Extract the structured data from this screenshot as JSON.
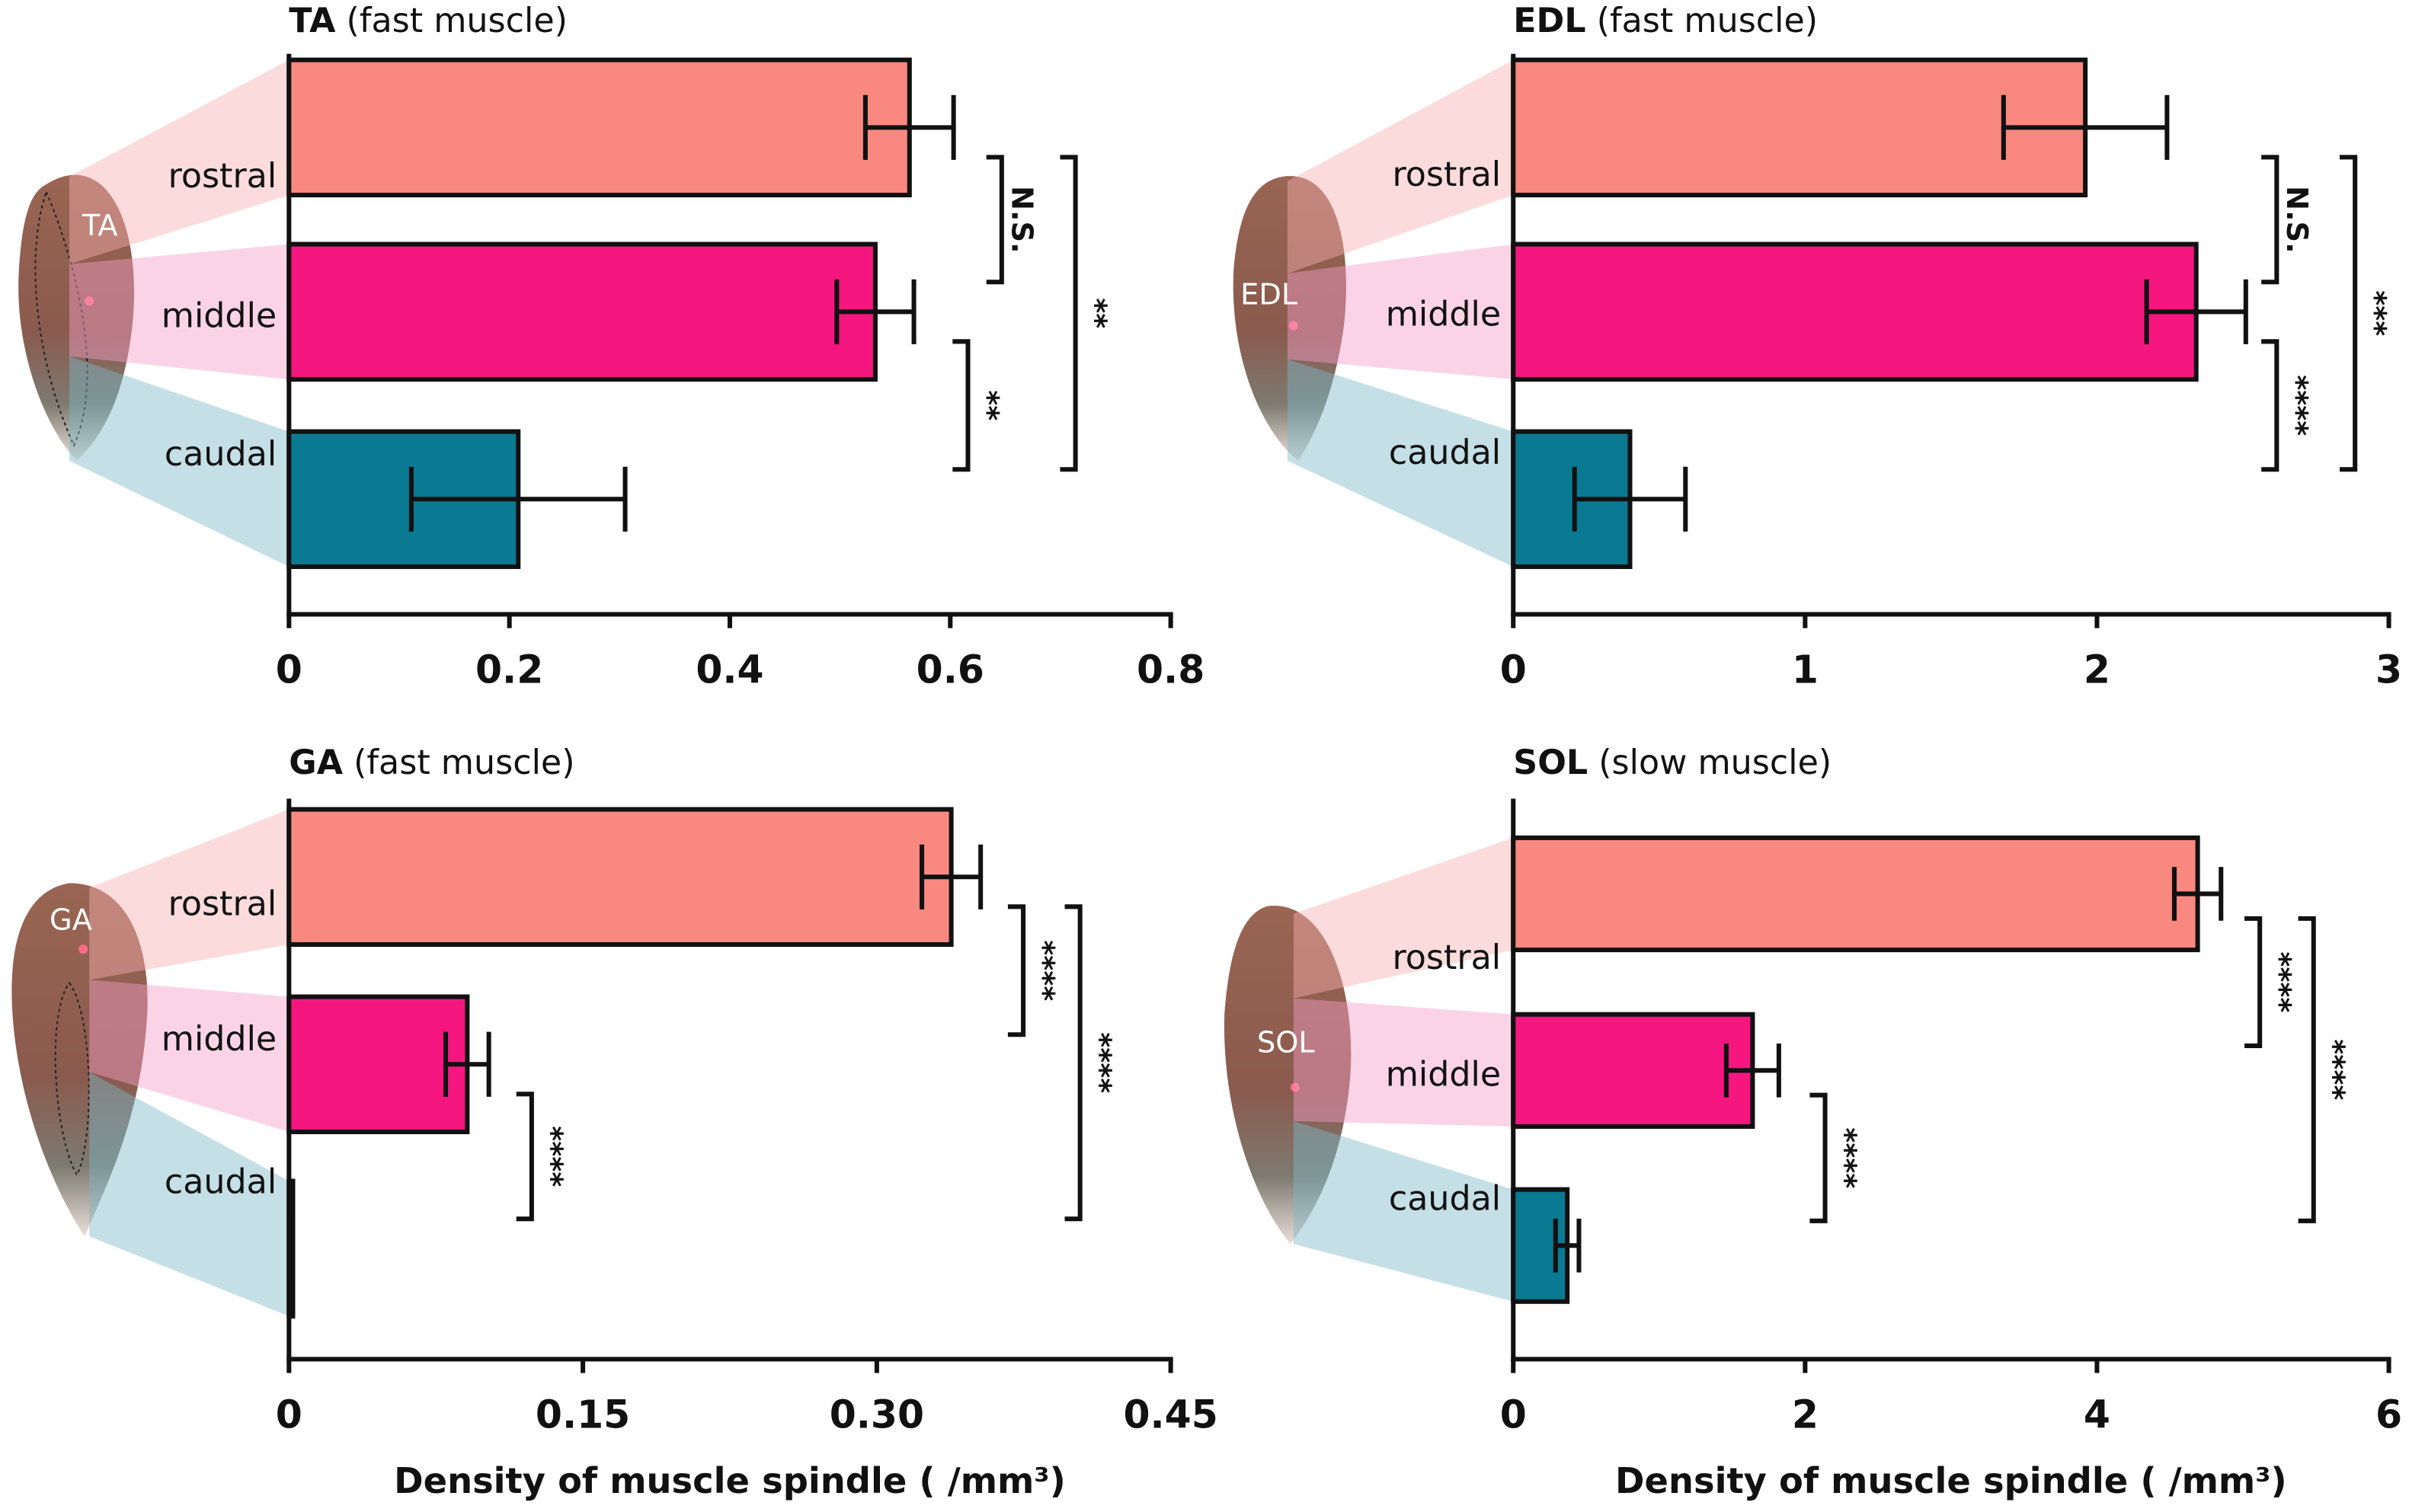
{
  "chart_data": [
    {
      "type": "bar",
      "orientation": "horizontal",
      "title": "TA",
      "subtitle": "(fast muscle)",
      "image_label": "TA",
      "categories": [
        "rostral",
        "middle",
        "caudal"
      ],
      "values": [
        0.563,
        0.532,
        0.208
      ],
      "errors": [
        0.04,
        0.035,
        0.097
      ],
      "colors": [
        "#f98880",
        "#f5177f",
        "#0a7a93"
      ],
      "xlim": [
        0,
        0.8
      ],
      "xticks": [
        0,
        0.2,
        0.4,
        0.6,
        0.8
      ],
      "significance": [
        "N.S.",
        "**",
        "**"
      ]
    },
    {
      "type": "bar",
      "orientation": "horizontal",
      "title": "EDL",
      "subtitle": "(fast muscle)",
      "image_label": "EDL",
      "categories": [
        "rostral",
        "middle",
        "caudal"
      ],
      "values": [
        1.96,
        2.34,
        0.4
      ],
      "errors": [
        0.28,
        0.17,
        0.19
      ],
      "colors": [
        "#f98880",
        "#f5177f",
        "#0a7a93"
      ],
      "xlim": [
        0,
        3
      ],
      "xticks": [
        0,
        1,
        2,
        3
      ],
      "significance": [
        "N.S.",
        "****",
        "***"
      ]
    },
    {
      "type": "bar",
      "orientation": "horizontal",
      "title": "GA",
      "subtitle": "(fast muscle)",
      "image_label": "GA",
      "categories": [
        "rostral",
        "middle",
        "caudal"
      ],
      "values": [
        0.338,
        0.091,
        0.002
      ],
      "errors": [
        0.015,
        0.011,
        0
      ],
      "colors": [
        "#f98880",
        "#f5177f",
        "#0a7a93"
      ],
      "xlim": [
        0,
        0.45
      ],
      "xticks": [
        0,
        0.15,
        {
          "value": 0.3,
          "label": "0.30"
        },
        0.45
      ],
      "significance": [
        "****",
        "****",
        "****"
      ],
      "xlabel": "Density of muscle spindle ( /mm³)"
    },
    {
      "type": "bar",
      "orientation": "horizontal",
      "title": "SOL",
      "subtitle": "(slow muscle)",
      "image_label": "SOL",
      "categories": [
        "rostral",
        "middle",
        "caudal"
      ],
      "values": [
        4.69,
        1.64,
        0.37
      ],
      "errors": [
        0.16,
        0.18,
        0.08
      ],
      "colors": [
        "#f98880",
        "#f5177f",
        "#0a7a93"
      ],
      "xlim": [
        0,
        6
      ],
      "xticks": [
        0,
        2,
        4,
        6
      ],
      "significance": [
        "****",
        "****",
        "****"
      ],
      "xlabel": "Density of muscle spindle ( /mm³)"
    }
  ]
}
